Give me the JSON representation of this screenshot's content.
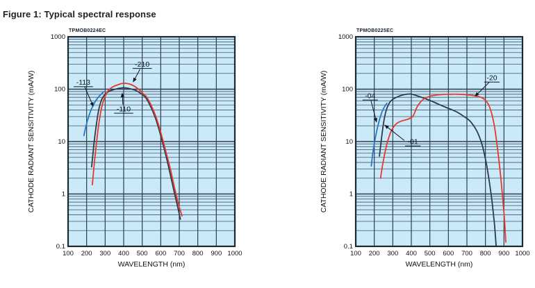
{
  "page": {
    "title": "Figure 1: Typical spectral response"
  },
  "colors": {
    "plot_bg": "#cbeaf9",
    "grid_minor": "#44566a",
    "grid_major": "#2e3d4d",
    "frame": "#1d2834",
    "text": "#111111",
    "annotation": "#0c151f",
    "series_blue": "#2578c3",
    "series_dark": "#2b3a4e",
    "series_red": "#e6392c"
  },
  "chart_data": [
    {
      "type": "line",
      "id_label": "TPMOB0224EC",
      "xlabel": "WAVELENGTH (nm)",
      "ylabel": "CATHODE RADIANT SENSITIVITY (mA/W)",
      "x_scale": "linear",
      "y_scale": "log",
      "xlim": [
        100,
        1000
      ],
      "ylim": [
        0.1,
        1000
      ],
      "x_ticks": [
        100,
        200,
        300,
        400,
        500,
        600,
        700,
        800,
        900,
        1000
      ],
      "y_ticks": [
        "1000",
        "100",
        "10",
        "1",
        "0.1"
      ],
      "grid": "on",
      "legend": "none",
      "series": [
        {
          "name": "-113",
          "color": "#2578c3",
          "points": [
            [
              185,
              13
            ],
            [
              200,
              22
            ],
            [
              220,
              37
            ],
            [
              240,
              53
            ],
            [
              260,
              68
            ],
            [
              275,
              78
            ],
            [
              290,
              88
            ]
          ]
        },
        {
          "name": "-110",
          "color": "#2b3a4e",
          "points": [
            [
              227,
              3.3
            ],
            [
              238,
              8
            ],
            [
              250,
              18
            ],
            [
              262,
              35
            ],
            [
              275,
              55
            ],
            [
              290,
              72
            ],
            [
              310,
              86
            ],
            [
              330,
              94
            ],
            [
              360,
              101
            ],
            [
              390,
              106
            ],
            [
              410,
              106
            ],
            [
              440,
              101
            ],
            [
              470,
              93
            ],
            [
              500,
              79
            ],
            [
              520,
              68
            ],
            [
              545,
              47
            ],
            [
              570,
              29
            ],
            [
              595,
              15
            ],
            [
              620,
              7
            ],
            [
              645,
              3
            ],
            [
              670,
              1.2
            ],
            [
              690,
              0.6
            ],
            [
              706,
              0.33
            ]
          ]
        },
        {
          "name": "-210",
          "color": "#e6392c",
          "points": [
            [
              231,
              1.5
            ],
            [
              242,
              4
            ],
            [
              254,
              10
            ],
            [
              266,
              22
            ],
            [
              280,
              43
            ],
            [
              295,
              66
            ],
            [
              315,
              92
            ],
            [
              340,
              110
            ],
            [
              370,
              122
            ],
            [
              395,
              129
            ],
            [
              420,
              128
            ],
            [
              450,
              118
            ],
            [
              480,
              100
            ],
            [
              505,
              82
            ],
            [
              525,
              70
            ],
            [
              550,
              48
            ],
            [
              575,
              29
            ],
            [
              600,
              15
            ],
            [
              625,
              7
            ],
            [
              650,
              3.2
            ],
            [
              675,
              1.3
            ],
            [
              695,
              0.65
            ],
            [
              715,
              0.38
            ]
          ]
        }
      ],
      "annotations": [
        {
          "text": "-210",
          "label_at": [
            500,
            300
          ],
          "arrow_from": [
            488,
            240
          ],
          "arrow_to": [
            450,
            135
          ]
        },
        {
          "text": "-113",
          "label_at": [
            182,
            135
          ],
          "arrow_from": [
            190,
            110
          ],
          "arrow_to": [
            237,
            46
          ]
        },
        {
          "text": "-110",
          "label_at": [
            400,
            42
          ],
          "arrow_from": [
            396,
            51
          ],
          "arrow_to": [
            392,
            86
          ]
        }
      ]
    },
    {
      "type": "line",
      "id_label": "TPMOB0225EC",
      "xlabel": "WAVELENGTH (nm)",
      "ylabel": "CATHODE RADIANT SENSITIVITY (mA/W)",
      "x_scale": "linear",
      "y_scale": "log",
      "xlim": [
        100,
        1000
      ],
      "ylim": [
        0.1,
        1000
      ],
      "x_ticks": [
        100,
        200,
        300,
        400,
        500,
        600,
        700,
        800,
        900,
        1000
      ],
      "y_ticks": [
        "1000",
        "100",
        "10",
        "1",
        "0.1"
      ],
      "grid": "on",
      "legend": "none",
      "series": [
        {
          "name": "-04",
          "color": "#2578c3",
          "points": [
            [
              184,
              3.4
            ],
            [
              192,
              6
            ],
            [
              202,
              10
            ],
            [
              215,
              17
            ],
            [
              228,
              26
            ],
            [
              242,
              37
            ],
            [
              255,
              46
            ],
            [
              268,
              54
            ]
          ]
        },
        {
          "name": "-01",
          "color": "#2b3a4e",
          "points": [
            [
              228,
              5.3
            ],
            [
              237,
              10
            ],
            [
              247,
              19
            ],
            [
              258,
              32
            ],
            [
              270,
              45
            ],
            [
              285,
              57
            ],
            [
              300,
              64
            ],
            [
              320,
              70
            ],
            [
              345,
              76
            ],
            [
              375,
              80
            ],
            [
              395,
              81
            ],
            [
              420,
              77
            ],
            [
              450,
              71
            ],
            [
              480,
              65
            ],
            [
              510,
              59
            ],
            [
              545,
              52
            ],
            [
              580,
              46
            ],
            [
              615,
              41
            ],
            [
              650,
              36
            ],
            [
              685,
              30
            ],
            [
              715,
              25
            ],
            [
              745,
              18
            ],
            [
              765,
              13
            ],
            [
              785,
              8
            ],
            [
              805,
              3.8
            ],
            [
              820,
              1.8
            ],
            [
              835,
              0.75
            ],
            [
              848,
              0.28
            ],
            [
              858,
              0.1
            ]
          ]
        },
        {
          "name": "-20",
          "color": "#e6392c",
          "points": [
            [
              234,
              2
            ],
            [
              245,
              3.6
            ],
            [
              257,
              6
            ],
            [
              270,
              9.5
            ],
            [
              285,
              14
            ],
            [
              300,
              18
            ],
            [
              320,
              22
            ],
            [
              345,
              24.5
            ],
            [
              370,
              26
            ],
            [
              390,
              27.5
            ],
            [
              410,
              31
            ],
            [
              430,
              45
            ],
            [
              450,
              57
            ],
            [
              470,
              66
            ],
            [
              490,
              71
            ],
            [
              515,
              75
            ],
            [
              545,
              78
            ],
            [
              580,
              79.5
            ],
            [
              615,
              80
            ],
            [
              650,
              80
            ],
            [
              685,
              79
            ],
            [
              720,
              77
            ],
            [
              750,
              74
            ],
            [
              775,
              70
            ],
            [
              795,
              64
            ],
            [
              815,
              52
            ],
            [
              832,
              36
            ],
            [
              848,
              20
            ],
            [
              862,
              9
            ],
            [
              876,
              3.5
            ],
            [
              890,
              1.1
            ],
            [
              902,
              0.35
            ],
            [
              910,
              0.12
            ]
          ]
        }
      ],
      "annotations": [
        {
          "text": "-20",
          "label_at": [
            835,
            165
          ],
          "arrow_from": [
            820,
            135
          ],
          "arrow_to": [
            742,
            72
          ]
        },
        {
          "text": "-04",
          "label_at": [
            178,
            75
          ],
          "arrow_from": [
            182,
            61
          ],
          "arrow_to": [
            213,
            23
          ]
        },
        {
          "text": "-01",
          "label_at": [
            408,
            10
          ],
          "arrow_from": [
            362,
            10.5
          ],
          "arrow_to": [
            254,
            21
          ]
        }
      ]
    }
  ]
}
